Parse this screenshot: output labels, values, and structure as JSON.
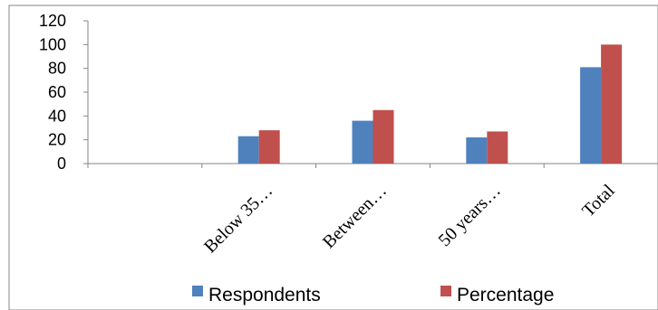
{
  "chart_data": {
    "type": "bar",
    "categories": [
      "",
      "Below 35…",
      "Between…",
      "50 years…",
      "Total"
    ],
    "series": [
      {
        "name": "Respondents",
        "values": [
          null,
          23,
          36,
          22,
          81
        ],
        "color": "#4F81BD"
      },
      {
        "name": "Percentage",
        "values": [
          null,
          28,
          45,
          27,
          100
        ],
        "color": "#C0504D"
      }
    ],
    "y_ticks": [
      "0",
      "20",
      "40",
      "60",
      "80",
      "100",
      "120"
    ],
    "ylim": [
      0,
      120
    ],
    "title": "",
    "xlabel": "",
    "ylabel": "",
    "grid": false,
    "legend_position": "bottom"
  }
}
